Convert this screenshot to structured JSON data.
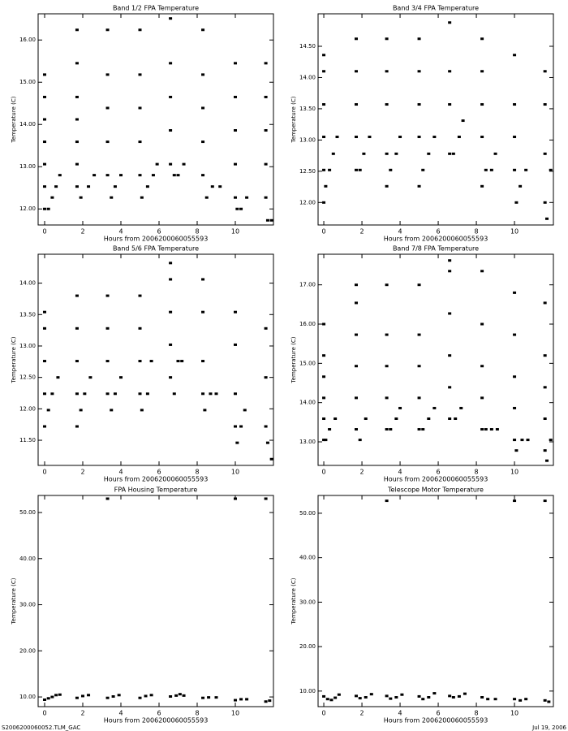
{
  "chart_data": [
    {
      "type": "scatter",
      "title": "Band 1/2 FPA Temperature",
      "x_label": "Hours from 2006200060055593",
      "y_label": "Temperature (C)",
      "color": "#000000",
      "xlim": [
        -0.34,
        12.0
      ],
      "ylim": [
        11.62,
        16.62
      ],
      "xticks": [
        0,
        2,
        4,
        6,
        8,
        10
      ],
      "yticks": [
        {
          "value": 12,
          "label": "12.00"
        },
        {
          "value": 13,
          "label": "13.00"
        },
        {
          "value": 14,
          "label": "14.00"
        },
        {
          "value": 15,
          "label": "15.00"
        },
        {
          "value": 16,
          "label": "16.00"
        }
      ],
      "x": [
        0,
        0,
        0,
        0,
        0,
        0,
        0,
        0.2,
        0.4,
        0.6,
        0.8,
        1.7,
        1.7,
        1.7,
        1.7,
        1.7,
        1.7,
        1.7,
        1.9,
        2.3,
        2.6,
        3.3,
        3.3,
        3.3,
        3.3,
        3.3,
        3.5,
        3.7,
        4.0,
        5.0,
        5.0,
        5.0,
        5.0,
        5.0,
        5.1,
        5.4,
        5.7,
        5.9,
        6.6,
        6.6,
        6.6,
        6.6,
        6.6,
        6.8,
        7.0,
        7.3,
        8.3,
        8.3,
        8.3,
        8.3,
        8.3,
        8.5,
        8.8,
        9.2,
        10.0,
        10.0,
        10.0,
        10.0,
        10.0,
        10.1,
        10.3,
        10.6,
        11.6,
        11.6,
        11.6,
        11.6,
        11.6,
        11.7,
        11.9
      ],
      "y": [
        12.0,
        12.53,
        13.06,
        13.59,
        14.12,
        14.65,
        15.18,
        12.0,
        12.27,
        12.53,
        12.8,
        12.53,
        13.06,
        13.59,
        14.12,
        14.65,
        15.45,
        16.24,
        12.27,
        12.53,
        12.8,
        12.8,
        13.59,
        14.39,
        15.18,
        16.24,
        12.27,
        12.53,
        12.8,
        12.8,
        13.59,
        14.39,
        15.18,
        16.24,
        12.27,
        12.53,
        12.8,
        13.06,
        13.06,
        13.86,
        14.65,
        15.45,
        16.51,
        12.8,
        12.8,
        13.06,
        12.8,
        13.59,
        14.39,
        15.18,
        16.24,
        12.27,
        12.53,
        12.53,
        12.27,
        13.06,
        13.86,
        14.65,
        15.45,
        12.0,
        12.0,
        12.27,
        12.27,
        13.06,
        13.86,
        14.65,
        15.45,
        11.73,
        11.73
      ]
    },
    {
      "type": "scatter",
      "title": "Band 3/4 FPA Temperature",
      "x_label": "Hours from 2006200060055593",
      "y_label": "Temperature (C)",
      "color": "#000000",
      "xlim": [
        -0.3,
        12.04
      ],
      "ylim": [
        11.64,
        15.02
      ],
      "xticks": [
        0,
        2,
        4,
        6,
        8,
        10
      ],
      "yticks": [
        {
          "value": 12,
          "label": "12.00"
        },
        {
          "value": 12.5,
          "label": "12.50"
        },
        {
          "value": 13,
          "label": "13.00"
        },
        {
          "value": 13.5,
          "label": "13.50"
        },
        {
          "value": 14,
          "label": "14.00"
        },
        {
          "value": 14.5,
          "label": "14.50"
        }
      ],
      "x": [
        0,
        0,
        0,
        0,
        0,
        0,
        0.1,
        0.3,
        0.5,
        0.7,
        1.7,
        1.7,
        1.7,
        1.7,
        1.7,
        1.9,
        2.1,
        2.4,
        3.3,
        3.3,
        3.3,
        3.3,
        3.3,
        3.5,
        3.8,
        4.0,
        5.0,
        5.0,
        5.0,
        5.0,
        5.0,
        5.2,
        5.5,
        5.8,
        6.6,
        6.6,
        6.6,
        6.6,
        6.8,
        7.1,
        7.3,
        8.3,
        8.3,
        8.3,
        8.3,
        8.3,
        8.5,
        8.8,
        9.0,
        10.0,
        10.0,
        10.0,
        10.0,
        10.1,
        10.3,
        10.6,
        11.6,
        11.6,
        11.6,
        11.6,
        11.7,
        11.9
      ],
      "y": [
        12.0,
        12.52,
        13.05,
        13.57,
        14.1,
        14.36,
        12.26,
        12.52,
        12.78,
        13.05,
        12.52,
        13.05,
        13.57,
        14.1,
        14.62,
        12.52,
        12.78,
        13.05,
        12.26,
        12.78,
        13.57,
        14.1,
        14.62,
        12.52,
        12.78,
        13.05,
        12.26,
        13.05,
        13.57,
        14.1,
        14.62,
        12.52,
        12.78,
        13.05,
        12.78,
        13.57,
        14.1,
        14.88,
        12.78,
        13.05,
        13.31,
        12.26,
        13.05,
        13.57,
        14.1,
        14.62,
        12.52,
        12.52,
        12.78,
        12.52,
        13.05,
        13.57,
        14.36,
        12.0,
        12.26,
        12.52,
        12.0,
        12.78,
        13.57,
        14.1,
        11.74,
        12.52
      ]
    },
    {
      "type": "scatter",
      "title": "Band 5/6 FPA Temperature",
      "x_label": "Hours from 2006200060055593",
      "y_label": "Temperature (C)",
      "color": "#000000",
      "xlim": [
        -0.34,
        12.0
      ],
      "ylim": [
        11.1,
        14.46
      ],
      "xticks": [
        0,
        2,
        4,
        6,
        8,
        10
      ],
      "yticks": [
        {
          "value": 11.5,
          "label": "11.50"
        },
        {
          "value": 12,
          "label": "12.00"
        },
        {
          "value": 12.5,
          "label": "12.50"
        },
        {
          "value": 13,
          "label": "13.00"
        },
        {
          "value": 13.5,
          "label": "13.50"
        },
        {
          "value": 14,
          "label": "14.00"
        }
      ],
      "x": [
        0,
        0,
        0,
        0,
        0,
        0.2,
        0.4,
        0.7,
        1.7,
        1.7,
        1.7,
        1.7,
        1.7,
        1.9,
        2.1,
        2.4,
        3.3,
        3.3,
        3.3,
        3.3,
        3.5,
        3.7,
        4.0,
        5.0,
        5.0,
        5.0,
        5.0,
        5.1,
        5.4,
        5.6,
        6.6,
        6.6,
        6.6,
        6.6,
        6.6,
        6.8,
        7.0,
        7.2,
        8.3,
        8.3,
        8.3,
        8.3,
        8.4,
        8.7,
        9.0,
        10.0,
        10.0,
        10.0,
        10.0,
        10.1,
        10.3,
        10.5,
        11.6,
        11.6,
        11.6,
        11.7,
        11.9
      ],
      "y": [
        11.72,
        12.24,
        12.76,
        13.28,
        13.54,
        11.98,
        12.24,
        12.5,
        11.72,
        12.24,
        12.76,
        13.28,
        13.8,
        11.98,
        12.24,
        12.5,
        12.24,
        12.76,
        13.28,
        13.8,
        11.98,
        12.24,
        12.5,
        12.24,
        12.76,
        13.28,
        13.8,
        11.98,
        12.24,
        12.76,
        12.5,
        13.02,
        13.54,
        14.06,
        14.32,
        12.24,
        12.76,
        12.76,
        12.24,
        12.76,
        13.54,
        14.06,
        11.98,
        12.24,
        12.24,
        11.72,
        12.24,
        13.02,
        13.54,
        11.46,
        11.72,
        11.98,
        11.72,
        12.5,
        13.28,
        11.46,
        11.2
      ]
    },
    {
      "type": "scatter",
      "title": "Band 7/8 FPA Temperature",
      "x_label": "Hours from 2006200060055593",
      "y_label": "Temperature (C)",
      "color": "#000000",
      "xlim": [
        -0.3,
        12.04
      ],
      "ylim": [
        12.4,
        17.78
      ],
      "xticks": [
        0,
        2,
        4,
        6,
        8,
        10
      ],
      "yticks": [
        {
          "value": 13,
          "label": "13.00"
        },
        {
          "value": 14,
          "label": "14.00"
        },
        {
          "value": 15,
          "label": "15.00"
        },
        {
          "value": 16,
          "label": "16.00"
        },
        {
          "value": 17,
          "label": "17.00"
        }
      ],
      "x": [
        0,
        0,
        0,
        0,
        0,
        0,
        0.1,
        0.3,
        0.6,
        1.7,
        1.7,
        1.7,
        1.7,
        1.7,
        1.7,
        1.9,
        2.2,
        3.3,
        3.3,
        3.3,
        3.3,
        3.3,
        3.5,
        3.8,
        4.0,
        5.0,
        5.0,
        5.0,
        5.0,
        5.0,
        5.2,
        5.5,
        5.8,
        6.6,
        6.6,
        6.6,
        6.6,
        6.6,
        6.6,
        6.9,
        7.2,
        8.3,
        8.3,
        8.3,
        8.3,
        8.3,
        8.5,
        8.8,
        9.1,
        10.0,
        10.0,
        10.0,
        10.0,
        10.0,
        10.1,
        10.4,
        10.7,
        11.6,
        11.6,
        11.6,
        11.6,
        11.6,
        11.7,
        11.9
      ],
      "y": [
        13.05,
        13.59,
        14.12,
        14.66,
        15.2,
        16.0,
        13.05,
        13.32,
        13.59,
        13.32,
        14.12,
        14.93,
        15.73,
        16.54,
        17.0,
        13.05,
        13.59,
        13.32,
        14.12,
        14.93,
        15.73,
        17.0,
        13.32,
        13.59,
        13.86,
        13.32,
        14.12,
        14.93,
        15.73,
        17.0,
        13.32,
        13.59,
        13.86,
        13.59,
        14.39,
        15.2,
        16.27,
        17.35,
        17.62,
        13.59,
        13.86,
        13.32,
        14.12,
        14.93,
        16.0,
        17.35,
        13.32,
        13.32,
        13.32,
        13.05,
        13.86,
        14.66,
        15.73,
        16.8,
        12.78,
        13.05,
        13.05,
        12.78,
        13.59,
        14.39,
        15.2,
        16.54,
        12.52,
        13.05
      ]
    },
    {
      "type": "scatter",
      "title": "FPA Housing Temperature",
      "x_label": "Hours from 2006200060055593",
      "y_label": "Temperature (C)",
      "color": "#000000",
      "xlim": [
        -0.34,
        12.0
      ],
      "ylim": [
        7.9,
        53.7
      ],
      "xticks": [
        0,
        2,
        4,
        6,
        8,
        10
      ],
      "yticks": [
        {
          "value": 10,
          "label": "10.00"
        },
        {
          "value": 20,
          "label": "20.00"
        },
        {
          "value": 30,
          "label": "30.00"
        },
        {
          "value": 40,
          "label": "40.00"
        },
        {
          "value": 50,
          "label": "50.00"
        }
      ],
      "x": [
        0,
        0.2,
        0.4,
        0.6,
        0.8,
        1.7,
        2.0,
        2.3,
        3.3,
        3.3,
        3.6,
        3.9,
        5.0,
        5.3,
        5.6,
        6.6,
        6.9,
        7.1,
        7.3,
        8.3,
        8.6,
        9.0,
        10.0,
        10.0,
        10.3,
        10.6,
        11.6,
        11.6,
        11.8
      ],
      "y": [
        9.4,
        9.7,
        10.0,
        10.4,
        10.5,
        9.8,
        10.2,
        10.4,
        53.0,
        9.8,
        10.1,
        10.4,
        9.8,
        10.2,
        10.4,
        10.1,
        10.3,
        10.6,
        10.3,
        9.8,
        9.9,
        9.9,
        53.0,
        9.3,
        9.5,
        9.5,
        53.0,
        9.0,
        9.2
      ]
    },
    {
      "type": "scatter",
      "title": "Telescope Motor Temperature",
      "x_label": "Hours from 2006200060055593",
      "y_label": "Temperature (C)",
      "color": "#000000",
      "xlim": [
        -0.3,
        12.04
      ],
      "ylim": [
        6.5,
        54.0
      ],
      "xticks": [
        0,
        2,
        4,
        6,
        8,
        10
      ],
      "yticks": [
        {
          "value": 10,
          "label": "10.00"
        },
        {
          "value": 20,
          "label": "20.00"
        },
        {
          "value": 30,
          "label": "30.00"
        },
        {
          "value": 40,
          "label": "40.00"
        },
        {
          "value": 50,
          "label": "50.00"
        }
      ],
      "x": [
        0,
        0.2,
        0.4,
        0.6,
        0.8,
        1.7,
        1.9,
        2.2,
        2.5,
        3.3,
        3.3,
        3.5,
        3.8,
        4.1,
        5.0,
        5.2,
        5.5,
        5.8,
        6.6,
        6.8,
        7.1,
        7.4,
        8.3,
        8.6,
        9.0,
        10.0,
        10.0,
        10.3,
        10.6,
        11.6,
        11.6,
        11.8
      ],
      "y": [
        8.8,
        8.2,
        8.0,
        8.5,
        9.2,
        8.9,
        8.4,
        8.6,
        9.3,
        52.8,
        8.9,
        8.3,
        8.6,
        9.2,
        8.8,
        8.2,
        8.6,
        9.5,
        8.9,
        8.6,
        8.8,
        9.4,
        8.6,
        8.2,
        8.2,
        52.8,
        8.2,
        7.9,
        8.2,
        52.8,
        7.9,
        7.6
      ]
    }
  ],
  "footer": {
    "file": "S2006200060052.TLM_GAC",
    "date": "Jul 19, 2006"
  }
}
